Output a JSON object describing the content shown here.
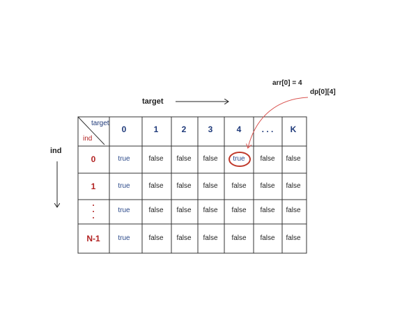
{
  "labels": {
    "target_axis": "target",
    "ind_axis": "ind",
    "corner_target": "target",
    "corner_ind": "ind",
    "annotation_arr": "arr[0] = 4",
    "annotation_dp": "dp[0][4]"
  },
  "columns": [
    "0",
    "1",
    "2",
    "3",
    "4",
    ". . .",
    "K"
  ],
  "rows": [
    {
      "label": "0",
      "cells": [
        "true",
        "false",
        "false",
        "false",
        "true",
        "false",
        "false"
      ]
    },
    {
      "label": "1",
      "cells": [
        "true",
        "false",
        "false",
        "false",
        "false",
        "false",
        "false"
      ]
    },
    {
      "label": ".\n.\n.",
      "cells": [
        "true",
        "false",
        "false",
        "false",
        "false",
        "false",
        "false"
      ]
    },
    {
      "label": "N-1",
      "cells": [
        "true",
        "false",
        "false",
        "false",
        "false",
        "false",
        "false"
      ]
    }
  ],
  "highlight": {
    "row": 0,
    "col": 4
  },
  "colors": {
    "true_text": "#2c4a8a",
    "row_label": "#b22222",
    "header_num": "#1f3a7a",
    "highlight_ring": "#c0392b",
    "arrow": "#d9534f"
  }
}
